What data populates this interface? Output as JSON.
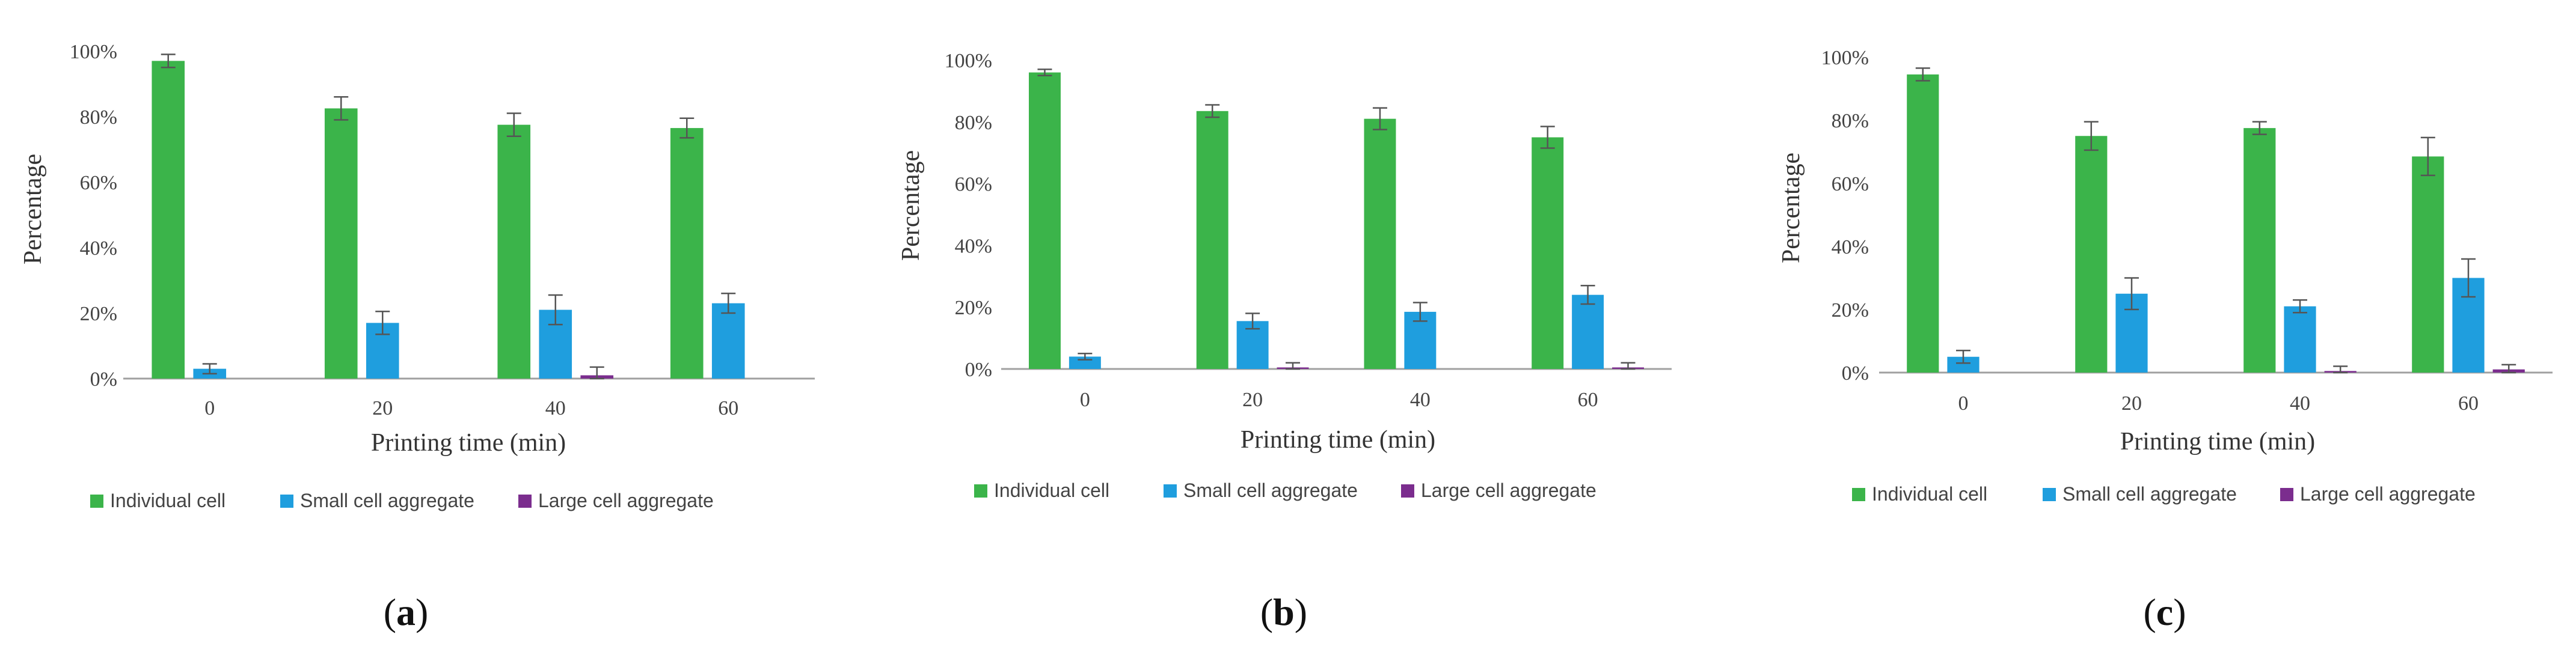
{
  "chart_data": [
    {
      "type": "bar",
      "panel_label": "a",
      "xlabel": "Printing time (min)",
      "ylabel": "Percentage",
      "ylim": [
        0,
        100
      ],
      "ytick_labels": [
        "0%",
        "20%",
        "40%",
        "60%",
        "80%",
        "100%"
      ],
      "categories": [
        "0",
        "20",
        "40",
        "60"
      ],
      "series": [
        {
          "name": "Individual cell",
          "color": "#3bb44a",
          "values": [
            97,
            82.5,
            77.5,
            76.5
          ],
          "errors": [
            2,
            3.5,
            3.5,
            3
          ]
        },
        {
          "name": "Small cell aggregate",
          "color": "#1f9ede",
          "values": [
            3,
            17,
            21,
            23
          ],
          "errors": [
            1.5,
            3.5,
            4.5,
            3
          ]
        },
        {
          "name": "Large cell aggregate",
          "color": "#7b2d8e",
          "values": [
            0,
            0,
            1,
            0
          ],
          "errors": [
            0,
            0,
            2.5,
            0
          ]
        }
      ]
    },
    {
      "type": "bar",
      "panel_label": "b",
      "xlabel": "Printing time (min)",
      "ylabel": "Percentage",
      "ylim": [
        0,
        100
      ],
      "ytick_labels": [
        "0%",
        "20%",
        "40%",
        "60%",
        "80%",
        "100%"
      ],
      "categories": [
        "0",
        "20",
        "40",
        "60"
      ],
      "series": [
        {
          "name": "Individual cell",
          "color": "#3bb44a",
          "values": [
            96,
            83.5,
            81,
            75
          ],
          "errors": [
            1,
            2,
            3.5,
            3.5
          ]
        },
        {
          "name": "Small cell aggregate",
          "color": "#1f9ede",
          "values": [
            4,
            15.5,
            18.5,
            24
          ],
          "errors": [
            1,
            2.5,
            3,
            3
          ]
        },
        {
          "name": "Large cell aggregate",
          "color": "#7b2d8e",
          "values": [
            0,
            0.5,
            0,
            0.5
          ],
          "errors": [
            0,
            1.5,
            0,
            1.5
          ]
        }
      ]
    },
    {
      "type": "bar",
      "panel_label": "c",
      "xlabel": "Printing time (min)",
      "ylabel": "Percentage",
      "ylim": [
        0,
        100
      ],
      "ytick_labels": [
        "0%",
        "20%",
        "40%",
        "60%",
        "80%",
        "100%"
      ],
      "categories": [
        "0",
        "20",
        "40",
        "60"
      ],
      "series": [
        {
          "name": "Individual cell",
          "color": "#3bb44a",
          "values": [
            94.5,
            75,
            77.5,
            68.5
          ],
          "errors": [
            2,
            4.5,
            2,
            6
          ]
        },
        {
          "name": "Small cell aggregate",
          "color": "#1f9ede",
          "values": [
            5,
            25,
            21,
            30
          ],
          "errors": [
            2,
            5,
            2,
            6
          ]
        },
        {
          "name": "Large cell aggregate",
          "color": "#7b2d8e",
          "values": [
            0,
            0,
            0.5,
            1
          ],
          "errors": [
            0,
            0,
            1.5,
            1.5
          ]
        }
      ]
    }
  ]
}
